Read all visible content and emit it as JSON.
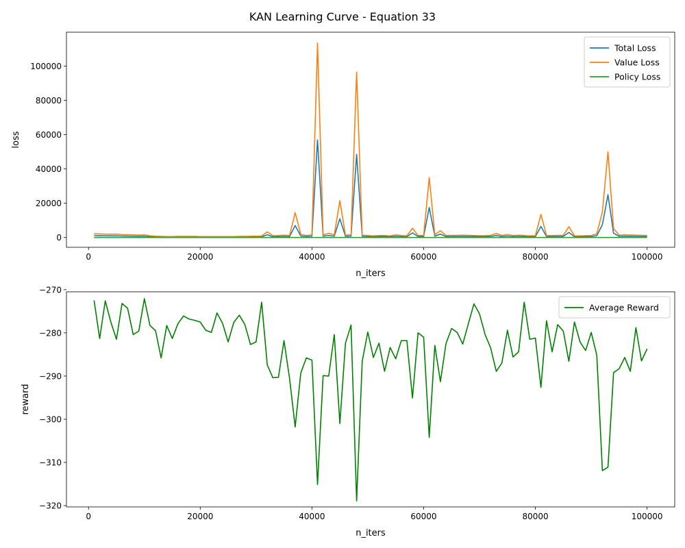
{
  "figure": {
    "title": "KAN Learning Curve - Equation 33"
  },
  "chart_data": [
    {
      "type": "line",
      "xlabel": "n_iters",
      "ylabel": "loss",
      "xlim": [
        -3950,
        104950
      ],
      "ylim": [
        -5700,
        119800
      ],
      "xticks": [
        0,
        20000,
        40000,
        60000,
        80000,
        100000
      ],
      "yticks": [
        0,
        20000,
        40000,
        60000,
        80000,
        100000
      ],
      "legend_position": "top-right",
      "x": [
        1000,
        2000,
        3000,
        4000,
        5000,
        6000,
        7000,
        8000,
        9000,
        10000,
        11000,
        12000,
        13000,
        14000,
        15000,
        16000,
        17000,
        18000,
        19000,
        20000,
        21000,
        22000,
        23000,
        24000,
        25000,
        26000,
        27000,
        28000,
        29000,
        30000,
        31000,
        32000,
        33000,
        34000,
        35000,
        36000,
        37000,
        38000,
        39000,
        40000,
        41000,
        42000,
        43000,
        44000,
        45000,
        46000,
        47000,
        48000,
        49000,
        50000,
        51000,
        52000,
        53000,
        54000,
        55000,
        56000,
        57000,
        58000,
        59000,
        60000,
        61000,
        62000,
        63000,
        64000,
        65000,
        66000,
        67000,
        68000,
        69000,
        70000,
        71000,
        72000,
        73000,
        74000,
        75000,
        76000,
        77000,
        78000,
        79000,
        80000,
        81000,
        82000,
        83000,
        84000,
        85000,
        86000,
        87000,
        88000,
        89000,
        90000,
        91000,
        92000,
        93000,
        94000,
        95000,
        96000,
        97000,
        98000,
        99000,
        100000
      ],
      "series": [
        {
          "name": "Total Loss",
          "color": "#1f77b4",
          "values": [
            1100,
            1050,
            1000,
            950,
            1000,
            900,
            850,
            800,
            700,
            800,
            500,
            400,
            350,
            300,
            300,
            300,
            350,
            350,
            350,
            300,
            300,
            300,
            250,
            300,
            300,
            300,
            350,
            350,
            400,
            400,
            450,
            1600,
            500,
            600,
            700,
            600,
            7000,
            900,
            600,
            800,
            57000,
            800,
            1200,
            800,
            11000,
            700,
            800,
            48500,
            700,
            600,
            500,
            600,
            600,
            500,
            800,
            600,
            500,
            2700,
            600,
            600,
            17500,
            800,
            2000,
            600,
            650,
            650,
            700,
            650,
            600,
            550,
            550,
            650,
            1200,
            600,
            900,
            600,
            700,
            600,
            500,
            550,
            6500,
            550,
            600,
            650,
            650,
            3000,
            500,
            500,
            550,
            600,
            1100,
            7500,
            25000,
            2500,
            700,
            800,
            750,
            700,
            650,
            600
          ]
        },
        {
          "name": "Value Loss",
          "color": "#ff7f0e",
          "values": [
            2200,
            2100,
            1950,
            1900,
            2000,
            1700,
            1700,
            1600,
            1350,
            1600,
            1000,
            800,
            700,
            600,
            600,
            650,
            700,
            700,
            700,
            600,
            550,
            550,
            550,
            600,
            600,
            600,
            700,
            700,
            750,
            800,
            900,
            3300,
            1100,
            1200,
            1400,
            1200,
            14500,
            1800,
            1200,
            1600,
            113500,
            1500,
            2500,
            1600,
            21500,
            1400,
            1600,
            96500,
            1400,
            1200,
            1000,
            1200,
            1200,
            1000,
            1600,
            1200,
            1000,
            5400,
            1200,
            1200,
            35000,
            1600,
            4000,
            1200,
            1300,
            1300,
            1400,
            1300,
            1200,
            1100,
            1100,
            1300,
            2400,
            1200,
            1800,
            1200,
            1400,
            1200,
            1000,
            1100,
            13500,
            1100,
            1200,
            1300,
            1300,
            6300,
            1000,
            1000,
            1100,
            1200,
            2200,
            15000,
            50000,
            5200,
            1400,
            1600,
            1500,
            1400,
            1300,
            1200
          ]
        },
        {
          "name": "Policy Loss",
          "color": "#2ca02c",
          "values": [
            2,
            2,
            2,
            2,
            2,
            2,
            2,
            2,
            2,
            2,
            2,
            2,
            2,
            2,
            2,
            2,
            2,
            2,
            2,
            2,
            2,
            2,
            2,
            2,
            2,
            2,
            2,
            2,
            2,
            2,
            2,
            2,
            2,
            2,
            2,
            2,
            2,
            2,
            2,
            2,
            2,
            2,
            2,
            2,
            2,
            2,
            2,
            2,
            2,
            2,
            2,
            2,
            2,
            2,
            2,
            2,
            2,
            2,
            2,
            2,
            2,
            2,
            2,
            2,
            2,
            2,
            2,
            2,
            2,
            2,
            2,
            2,
            2,
            2,
            2,
            2,
            2,
            2,
            2,
            2,
            2,
            2,
            2,
            2,
            2,
            2,
            2,
            2,
            2,
            2,
            2,
            2,
            2,
            2,
            2,
            2,
            2,
            2,
            2,
            2
          ]
        }
      ]
    },
    {
      "type": "line",
      "xlabel": "n_iters",
      "ylabel": "reward",
      "xlim": [
        -3950,
        104950
      ],
      "ylim": [
        -320.3,
        -270.5
      ],
      "xticks": [
        0,
        20000,
        40000,
        60000,
        80000,
        100000
      ],
      "yticks": [
        -320,
        -310,
        -300,
        -290,
        -280,
        -270
      ],
      "legend_position": "top-right",
      "x": [
        1000,
        2000,
        3000,
        4000,
        5000,
        6000,
        7000,
        8000,
        9000,
        10000,
        11000,
        12000,
        13000,
        14000,
        15000,
        16000,
        17000,
        18000,
        19000,
        20000,
        21000,
        22000,
        23000,
        24000,
        25000,
        26000,
        27000,
        28000,
        29000,
        30000,
        31000,
        32000,
        33000,
        34000,
        35000,
        36000,
        37000,
        38000,
        39000,
        40000,
        41000,
        42000,
        43000,
        44000,
        45000,
        46000,
        47000,
        48000,
        49000,
        50000,
        51000,
        52000,
        53000,
        54000,
        55000,
        56000,
        57000,
        58000,
        59000,
        60000,
        61000,
        62000,
        63000,
        64000,
        65000,
        66000,
        67000,
        68000,
        69000,
        70000,
        71000,
        72000,
        73000,
        74000,
        75000,
        76000,
        77000,
        78000,
        79000,
        80000,
        81000,
        82000,
        83000,
        84000,
        85000,
        86000,
        87000,
        88000,
        89000,
        90000,
        91000,
        92000,
        93000,
        94000,
        95000,
        96000,
        97000,
        98000,
        99000,
        100000
      ],
      "series": [
        {
          "name": "Average Reward",
          "color": "#008000",
          "values": [
            -272.5,
            -281.3,
            -272.6,
            -277.5,
            -281.5,
            -273.2,
            -274.3,
            -280.4,
            -279.6,
            -272.1,
            -278.3,
            -279.5,
            -285.8,
            -278.3,
            -281.3,
            -277.9,
            -276.1,
            -276.8,
            -277.1,
            -277.5,
            -279.4,
            -279.9,
            -275.4,
            -277.8,
            -282.1,
            -277.6,
            -275.9,
            -278.1,
            -282.7,
            -282.1,
            -272.9,
            -287.4,
            -290.4,
            -290.3,
            -281.8,
            -290.6,
            -301.8,
            -289.3,
            -285.8,
            -286.3,
            -315.1,
            -289.9,
            -290.0,
            -280.4,
            -301.0,
            -282.4,
            -278.2,
            -318.9,
            -286.6,
            -279.8,
            -285.7,
            -282.4,
            -288.9,
            -283.4,
            -286.0,
            -281.8,
            -281.8,
            -295.1,
            -280.0,
            -281.0,
            -304.2,
            -282.9,
            -291.3,
            -282.5,
            -279.0,
            -279.9,
            -282.6,
            -277.9,
            -273.3,
            -275.6,
            -280.4,
            -283.5,
            -288.9,
            -287.0,
            -279.4,
            -285.6,
            -284.4,
            -272.9,
            -281.5,
            -281.2,
            -292.6,
            -277.2,
            -284.4,
            -278.1,
            -279.6,
            -286.6,
            -277.5,
            -282.1,
            -284.1,
            -279.9,
            -285.2,
            -311.9,
            -311.1,
            -289.2,
            -288.3,
            -285.7,
            -288.9,
            -278.8,
            -286.5,
            -283.7
          ]
        }
      ]
    }
  ]
}
